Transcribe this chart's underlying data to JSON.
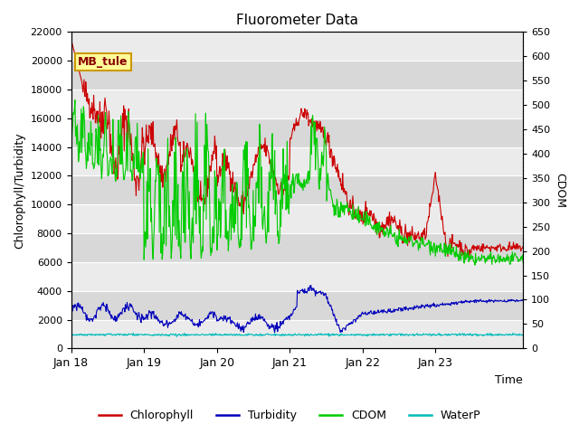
{
  "title": "Fluorometer Data",
  "xlabel": "Time",
  "ylabel_left": "Chlorophyll/Turbidity",
  "ylabel_right": "CDOM",
  "ylim_left": [
    0,
    22000
  ],
  "ylim_right": [
    0,
    650
  ],
  "yticks_left": [
    0,
    2000,
    4000,
    6000,
    8000,
    10000,
    12000,
    14000,
    16000,
    18000,
    20000,
    22000
  ],
  "yticks_right": [
    0,
    50,
    100,
    150,
    200,
    250,
    300,
    350,
    400,
    450,
    500,
    550,
    600,
    650
  ],
  "xtick_labels": [
    "Jan 18",
    "Jan 19",
    "Jan 20",
    "Jan 21",
    "Jan 22",
    "Jan 23"
  ],
  "xtick_positions": [
    0,
    1,
    2,
    3,
    4,
    5
  ],
  "xlim": [
    0,
    6.2
  ],
  "annotation_text": "MB_tule",
  "colors": {
    "chlorophyll": "#cc0000",
    "turbidity": "#0000bb",
    "cdom": "#00cc00",
    "waterp": "#00bbbb",
    "bg_dark": "#d8d8d8",
    "bg_light": "#ebebeb",
    "annotation_bg": "#ffff99",
    "annotation_border": "#cc9900"
  },
  "legend_labels": [
    "Chlorophyll",
    "Turbidity",
    "CDOM",
    "WaterP"
  ],
  "n_points": 800,
  "seed": 42
}
